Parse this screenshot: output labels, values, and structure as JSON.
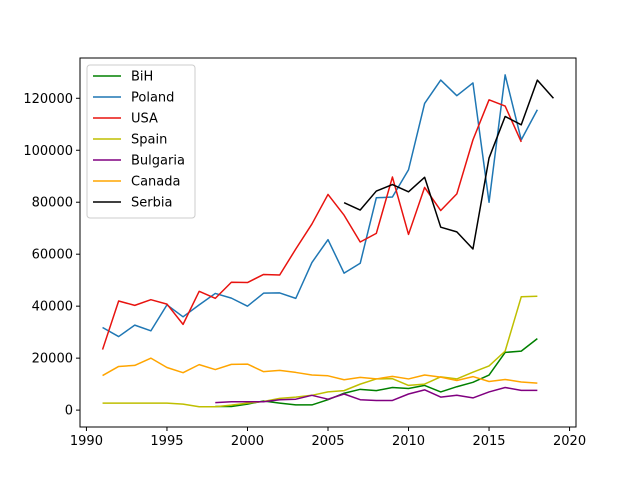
{
  "chart_data": {
    "type": "line",
    "title": "",
    "xlabel": "",
    "ylabel": "",
    "xlim": [
      1989.6,
      2020.4
    ],
    "ylim": [
      -6500,
      135500
    ],
    "x_ticks": [
      1990,
      1995,
      2000,
      2005,
      2010,
      2015,
      2020
    ],
    "y_ticks": [
      0,
      20000,
      40000,
      60000,
      80000,
      100000,
      120000
    ],
    "grid": false,
    "legend_position": "upper-left",
    "series": [
      {
        "name": "BiH",
        "color": "#008000",
        "x": [
          1998,
          1999,
          2000,
          2001,
          2002,
          2003,
          2004,
          2005,
          2006,
          2007,
          2008,
          2009,
          2010,
          2011,
          2012,
          2013,
          2014,
          2015,
          2016,
          2017,
          2018
        ],
        "y": [
          1400,
          1400,
          2300,
          3500,
          2700,
          2000,
          2000,
          4000,
          6500,
          8000,
          7500,
          8700,
          8300,
          9500,
          7000,
          9000,
          10700,
          13500,
          22200,
          22700,
          27500
        ]
      },
      {
        "name": "Poland",
        "color": "#1f77b4",
        "x": [
          1991,
          1992,
          1993,
          1994,
          1995,
          1996,
          1997,
          1998,
          1999,
          2000,
          2001,
          2002,
          2003,
          2004,
          2005,
          2006,
          2007,
          2008,
          2009,
          2010,
          2011,
          2012,
          2013,
          2014,
          2015,
          2016,
          2017,
          2018
        ],
        "y": [
          31800,
          28300,
          32700,
          30500,
          40500,
          35900,
          40500,
          44900,
          43100,
          40000,
          45000,
          45100,
          43000,
          56800,
          65600,
          52700,
          56500,
          81700,
          82000,
          92500,
          118000,
          127000,
          121000,
          125900,
          80000,
          129000,
          104000,
          115600
        ]
      },
      {
        "name": "USA",
        "color": "#e8130f",
        "x": [
          1991,
          1992,
          1993,
          1994,
          1995,
          1996,
          1997,
          1998,
          1999,
          2000,
          2001,
          2002,
          2003,
          2004,
          2005,
          2006,
          2007,
          2008,
          2009,
          2010,
          2011,
          2012,
          2013,
          2014,
          2015,
          2016,
          2017
        ],
        "y": [
          23300,
          42000,
          40300,
          42500,
          40800,
          33000,
          45700,
          43000,
          49200,
          49100,
          52200,
          52000,
          62000,
          71600,
          83000,
          75000,
          64700,
          68000,
          89700,
          67600,
          85700,
          76800,
          83200,
          104000,
          119400,
          117000,
          103200
        ]
      },
      {
        "name": "Spain",
        "color": "#bfbf00",
        "x": [
          1991,
          1992,
          1993,
          1994,
          1995,
          1996,
          1997,
          1998,
          1999,
          2000,
          2001,
          2002,
          2003,
          2004,
          2005,
          2006,
          2007,
          2008,
          2009,
          2010,
          2011,
          2012,
          2013,
          2014,
          2015,
          2016,
          2017,
          2018
        ],
        "y": [
          2700,
          2700,
          2700,
          2700,
          2700,
          2300,
          1300,
          1300,
          1900,
          2700,
          3300,
          4500,
          5000,
          5700,
          7000,
          7500,
          10000,
          12000,
          12100,
          9500,
          10000,
          12800,
          12000,
          14600,
          17000,
          22700,
          43600,
          43800
        ]
      },
      {
        "name": "Bulgaria",
        "color": "#800080",
        "x": [
          1998,
          1999,
          2000,
          2001,
          2002,
          2003,
          2004,
          2005,
          2006,
          2007,
          2008,
          2009,
          2010,
          2011,
          2012,
          2013,
          2014,
          2015,
          2016,
          2017,
          2018
        ],
        "y": [
          2900,
          3200,
          3200,
          3200,
          4000,
          4200,
          5700,
          4200,
          6200,
          4000,
          3700,
          3700,
          6200,
          7800,
          5000,
          5700,
          4700,
          7000,
          8700,
          7600,
          7600
        ]
      },
      {
        "name": "Canada",
        "color": "#ffa500",
        "x": [
          1991,
          1992,
          1993,
          1994,
          1995,
          1996,
          1997,
          1998,
          1999,
          2000,
          2001,
          2002,
          2003,
          2004,
          2005,
          2006,
          2007,
          2008,
          2009,
          2010,
          2011,
          2012,
          2013,
          2014,
          2015,
          2016,
          2017,
          2018
        ],
        "y": [
          13300,
          16800,
          17200,
          20000,
          16400,
          14400,
          17500,
          15600,
          17600,
          17700,
          14800,
          15300,
          14500,
          13500,
          13200,
          11700,
          12600,
          12000,
          13000,
          12000,
          13500,
          12700,
          11400,
          12900,
          11000,
          11800,
          10800,
          10400
        ]
      },
      {
        "name": "Serbia",
        "color": "#000000",
        "x": [
          2006,
          2007,
          2008,
          2009,
          2010,
          2011,
          2012,
          2013,
          2014,
          2015,
          2016,
          2017,
          2018,
          2019
        ],
        "y": [
          79800,
          77000,
          84300,
          86800,
          84000,
          89600,
          70400,
          68600,
          62000,
          97000,
          113000,
          109800,
          127000,
          120000
        ]
      }
    ]
  }
}
